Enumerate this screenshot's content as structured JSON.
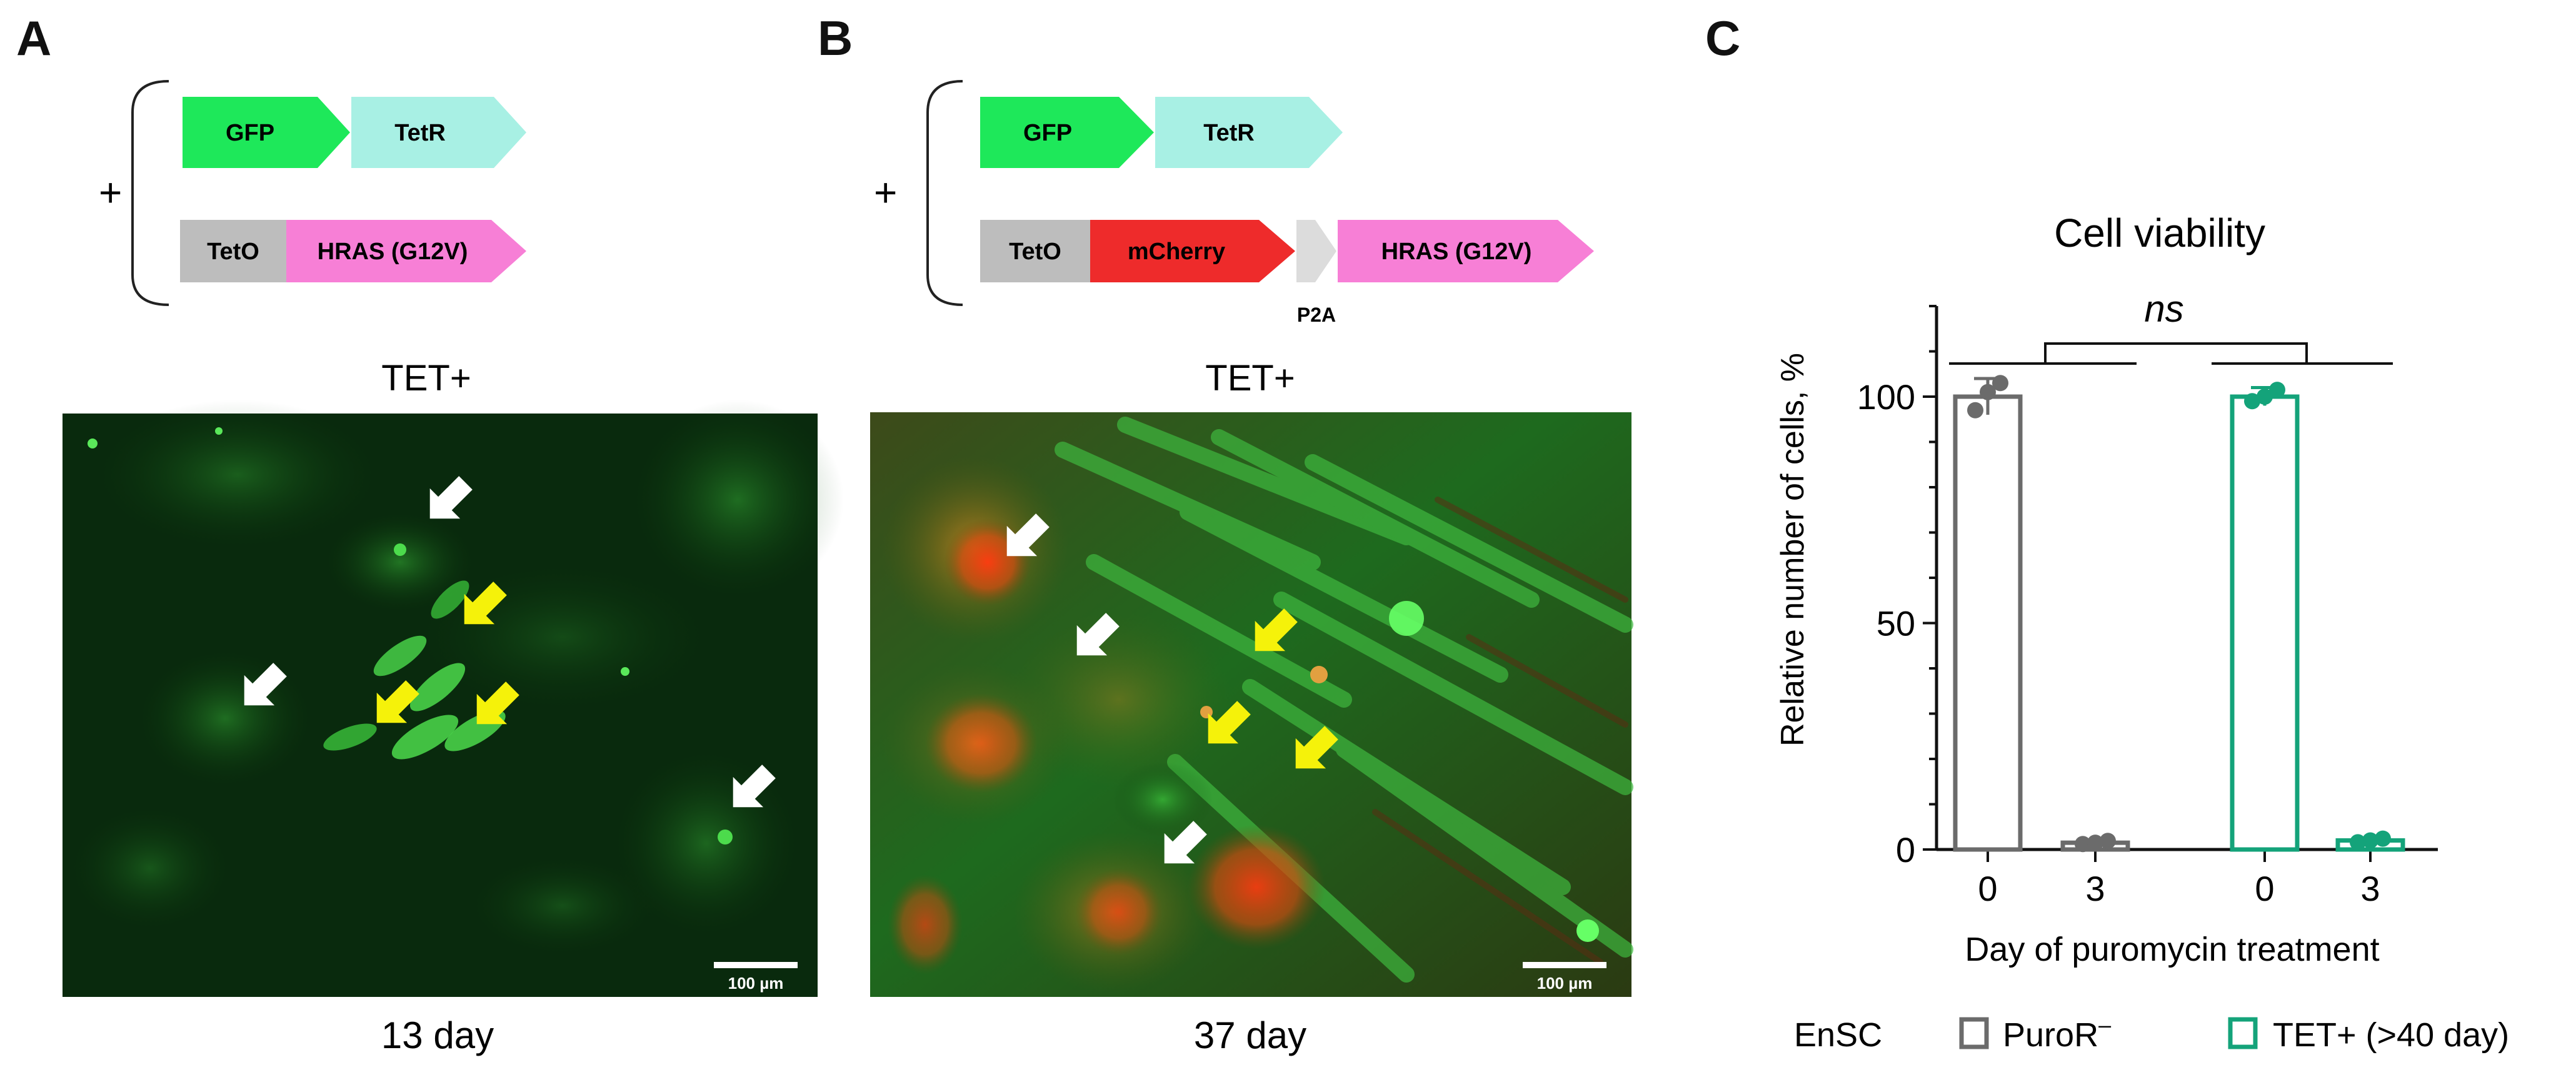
{
  "panels": {
    "A": {
      "letter": "A",
      "plus": "+",
      "constructs": {
        "row1": [
          "GFP",
          "TetR"
        ],
        "row2": [
          "TetO",
          "HRAS (G12V)"
        ]
      },
      "condition": "TET+",
      "scale_bar": "100 µm",
      "caption": "13 day"
    },
    "B": {
      "letter": "B",
      "plus": "+",
      "constructs": {
        "row1": [
          "GFP",
          "TetR"
        ],
        "row2": [
          "TetO",
          "mCherry",
          "HRAS (G12V)"
        ],
        "linker": "P2A"
      },
      "condition": "TET+",
      "scale_bar": "100 µm",
      "caption": "37 day"
    },
    "C": {
      "letter": "C"
    }
  },
  "colors": {
    "gfp": "#1ee85a",
    "tetr": "#a8f0e4",
    "teto": "#bdbdbd",
    "hras": "#f77fd6",
    "mcherry": "#ee2b2b",
    "p2a": "#dcdcdc",
    "puro": "#6b6b6b",
    "tet": "#14a37a",
    "white_arrow": "#ffffff",
    "yellow_arrow": "#f5f20a"
  },
  "chart_data": {
    "type": "bar",
    "title": "Cell viability",
    "xlabel": "Day of puromycin treatment",
    "ylabel": "Relative number of cells, %",
    "ylim": [
      0,
      120
    ],
    "yticks": [
      0,
      50,
      100
    ],
    "categories": [
      "0",
      "3",
      "0",
      "3"
    ],
    "groups": [
      {
        "name": "PuroR",
        "name_sup": "–",
        "color": "#6b6b6b",
        "x": [
          0,
          3
        ],
        "values": [
          100,
          1.5
        ],
        "errors": [
          4,
          0.5
        ],
        "points": [
          [
            97,
            101,
            103
          ],
          [
            1.2,
            1.5,
            1.9
          ]
        ]
      },
      {
        "name": "TET+ (>40 day)",
        "color": "#14a37a",
        "x": [
          0,
          3
        ],
        "values": [
          100,
          2
        ],
        "errors": [
          2,
          0.5
        ],
        "points": [
          [
            99,
            100,
            101.5
          ],
          [
            1.6,
            2.0,
            2.4
          ]
        ]
      }
    ],
    "significance": "ns",
    "legend": {
      "label": "EnSC",
      "placement": "bottom"
    }
  }
}
